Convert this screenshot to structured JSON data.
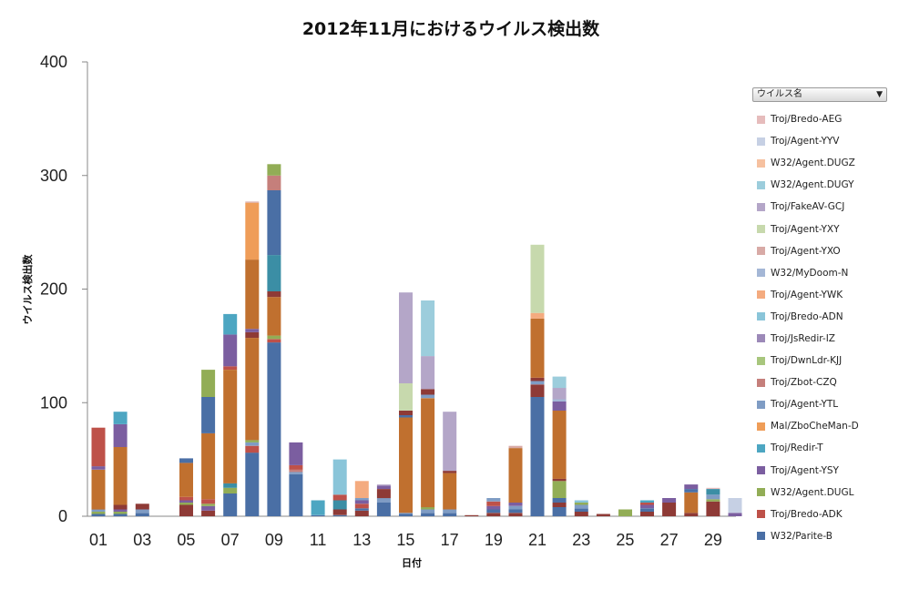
{
  "colors": {
    "W32/Parite-B": "#4a6fa5",
    "Troj/Bredo-ADK": "#be5149",
    "W32/Agent.DUGL": "#92ad56",
    "Troj/Agent-YSY": "#7b5ea0",
    "Troj/Redir-T": "#4da6c2",
    "Mal/ZboCheMan-D": "#ef9d58",
    "Troj/Agent-YTL": "#7f9cc4",
    "Troj/Zbot-CZQ": "#c57f7b",
    "Troj/DwnLdr-KJJ": "#a8c67d",
    "Troj/JsRedir-IZ": "#9c89b8",
    "Troj/Bredo-ADN": "#8ac5d9",
    "Troj/Agent-YWK": "#f4ab7f",
    "W32/MyDoom-N": "#a4b7d6",
    "Troj/Agent-YXO": "#d8aaa6",
    "Troj/Agent-YXY": "#c7d9ad",
    "Troj/FakeAV-GCJ": "#b4a6c8",
    "W32/Agent.DUGY": "#9ccddc",
    "W32/Agent.DUGZ": "#f6c1a0",
    "Troj/Agent-YYV": "#c6d0e4",
    "Troj/Bredo-AEG": "#e6bcbc",
    "dark-blue": "#3a5a8c",
    "dark-red": "#8e3a36",
    "brown": "#c0702f",
    "dark-teal": "#3b8ea5"
  },
  "legend": {
    "filter_label": "ウイルス名",
    "items": [
      "Troj/Bredo-AEG",
      "Troj/Agent-YYV",
      "W32/Agent.DUGZ",
      "W32/Agent.DUGY",
      "Troj/FakeAV-GCJ",
      "Troj/Agent-YXY",
      "Troj/Agent-YXO",
      "W32/MyDoom-N",
      "Troj/Agent-YWK",
      "Troj/Bredo-ADN",
      "Troj/JsRedir-IZ",
      "Troj/DwnLdr-KJJ",
      "Troj/Zbot-CZQ",
      "Troj/Agent-YTL",
      "Mal/ZboCheMan-D",
      "Troj/Redir-T",
      "Troj/Agent-YSY",
      "W32/Agent.DUGL",
      "Troj/Bredo-ADK",
      "W32/Parite-B"
    ]
  },
  "chart_data": {
    "type": "bar",
    "stacked": true,
    "title": "2012年11月におけるウイルス検出数",
    "xlabel": "日付",
    "ylabel": "ウイルス検出数",
    "ylim": [
      0,
      400
    ],
    "yticks": [
      0,
      100,
      200,
      300,
      400
    ],
    "xtick_labels": [
      "01",
      "03",
      "05",
      "07",
      "09",
      "11",
      "13",
      "15",
      "17",
      "19",
      "21",
      "23",
      "25",
      "27",
      "29"
    ],
    "categories": [
      "01",
      "02",
      "03",
      "04",
      "05",
      "06",
      "07",
      "08",
      "09",
      "10",
      "11",
      "12",
      "13",
      "14",
      "15",
      "16",
      "17",
      "18",
      "19",
      "20",
      "21",
      "22",
      "23",
      "24",
      "25",
      "26",
      "27",
      "28",
      "29",
      "30"
    ],
    "stacks": [
      [
        [
          "W32/Parite-B",
          2
        ],
        [
          "W32/Agent.DUGL",
          2
        ],
        [
          "Troj/Agent-YTL",
          2
        ],
        [
          "brown",
          35
        ],
        [
          "Troj/Agent-YSY",
          3
        ],
        [
          "Troj/Bredo-ADK",
          34
        ]
      ],
      [
        [
          "W32/Parite-B",
          2
        ],
        [
          "W32/Agent.DUGL",
          2
        ],
        [
          "Troj/Agent-YSY",
          2
        ],
        [
          "dark-red",
          4
        ],
        [
          "brown",
          51
        ],
        [
          "Troj/Agent-YSY",
          20
        ],
        [
          "Troj/Redir-T",
          11
        ]
      ],
      [
        [
          "W32/Parite-B",
          3
        ],
        [
          "Troj/Agent-YTL",
          3
        ],
        [
          "dark-red",
          5
        ]
      ],
      [],
      [
        [
          "dark-red",
          10
        ],
        [
          "W32/Agent.DUGL",
          2
        ],
        [
          "Troj/Agent-YSY",
          2
        ],
        [
          "Troj/Bredo-ADK",
          3
        ],
        [
          "brown",
          30
        ],
        [
          "W32/Parite-B",
          4
        ]
      ],
      [
        [
          "dark-red",
          5
        ],
        [
          "Troj/Agent-YSY",
          4
        ],
        [
          "W32/Agent.DUGL",
          2
        ],
        [
          "Troj/Bredo-ADK",
          4
        ],
        [
          "brown",
          58
        ],
        [
          "W32/Parite-B",
          32
        ],
        [
          "W32/Agent.DUGL",
          24
        ]
      ],
      [
        [
          "W32/Parite-B",
          20
        ],
        [
          "W32/Agent.DUGL",
          5
        ],
        [
          "dark-teal",
          4
        ],
        [
          "brown",
          100
        ],
        [
          "Troj/Bredo-ADK",
          3
        ],
        [
          "Troj/Agent-YSY",
          28
        ],
        [
          "Troj/Redir-T",
          18
        ]
      ],
      [
        [
          "W32/Parite-B",
          56
        ],
        [
          "Troj/Bredo-ADK",
          6
        ],
        [
          "Troj/Agent-YTL",
          3
        ],
        [
          "W32/Agent.DUGL",
          2
        ],
        [
          "brown",
          90
        ],
        [
          "dark-red",
          5
        ],
        [
          "Troj/Agent-YSY",
          3
        ],
        [
          "brown",
          61
        ],
        [
          "Mal/ZboCheMan-D",
          50
        ],
        [
          "Troj/Agent-YXO",
          1
        ]
      ],
      [
        [
          "W32/Parite-B",
          153
        ],
        [
          "Troj/Bredo-ADK",
          3
        ],
        [
          "W32/Agent.DUGL",
          3
        ],
        [
          "brown",
          34
        ],
        [
          "dark-red",
          5
        ],
        [
          "dark-teal",
          32
        ],
        [
          "W32/Parite-B",
          57
        ],
        [
          "Troj/Zbot-CZQ",
          13
        ],
        [
          "W32/Agent.DUGL",
          10
        ]
      ],
      [
        [
          "W32/Parite-B",
          37
        ],
        [
          "Troj/Agent-YTL",
          2
        ],
        [
          "Troj/Zbot-CZQ",
          2
        ],
        [
          "Troj/Bredo-ADK",
          4
        ],
        [
          "Troj/Agent-YSY",
          20
        ]
      ],
      [
        [
          "W32/Parite-B",
          1
        ],
        [
          "Troj/Redir-T",
          13
        ]
      ],
      [
        [
          "W32/Parite-B",
          1
        ],
        [
          "dark-red",
          5
        ],
        [
          "dark-teal",
          8
        ],
        [
          "Troj/Bredo-ADK",
          5
        ],
        [
          "Troj/Bredo-ADN",
          31
        ]
      ],
      [
        [
          "dark-red",
          5
        ],
        [
          "W32/Parite-B",
          2
        ],
        [
          "Troj/Bredo-ADK",
          4
        ],
        [
          "Troj/Agent-YSY",
          3
        ],
        [
          "Troj/Agent-YTL",
          2
        ],
        [
          "Troj/Agent-YWK",
          15
        ]
      ],
      [
        [
          "W32/Parite-B",
          12
        ],
        [
          "Troj/Agent-YTL",
          4
        ],
        [
          "dark-red",
          8
        ],
        [
          "Troj/Agent-YSY",
          3
        ],
        [
          "Troj/FakeAV-GCJ",
          1
        ]
      ],
      [
        [
          "W32/Parite-B",
          2
        ],
        [
          "Troj/Agent-YTL",
          1
        ],
        [
          "brown",
          84
        ],
        [
          "W32/Parite-B",
          2
        ],
        [
          "dark-red",
          4
        ],
        [
          "Troj/Agent-YXY",
          24
        ],
        [
          "Troj/FakeAV-GCJ",
          80
        ]
      ],
      [
        [
          "W32/Parite-B",
          3
        ],
        [
          "Troj/Agent-YTL",
          3
        ],
        [
          "W32/Agent.DUGL",
          2
        ],
        [
          "brown",
          96
        ],
        [
          "Troj/Agent-YTL",
          3
        ],
        [
          "dark-red",
          5
        ],
        [
          "Troj/FakeAV-GCJ",
          29
        ],
        [
          "W32/Agent.DUGY",
          49
        ]
      ],
      [
        [
          "W32/Parite-B",
          3
        ],
        [
          "Troj/Agent-YTL",
          3
        ],
        [
          "brown",
          32
        ],
        [
          "dark-red",
          2
        ],
        [
          "Troj/FakeAV-GCJ",
          52
        ]
      ],
      [
        [
          "dark-red",
          1
        ]
      ],
      [
        [
          "dark-red",
          3
        ],
        [
          "W32/Parite-B",
          3
        ],
        [
          "Troj/Agent-YSY",
          3
        ],
        [
          "Troj/Bredo-ADK",
          4
        ],
        [
          "Troj/Agent-YTL",
          3
        ]
      ],
      [
        [
          "dark-red",
          3
        ],
        [
          "W32/Parite-B",
          3
        ],
        [
          "Troj/Agent-YTL",
          3
        ],
        [
          "Troj/Agent-YSY",
          3
        ],
        [
          "brown",
          48
        ],
        [
          "Troj/Agent-YXO",
          2
        ]
      ],
      [
        [
          "W32/Parite-B",
          105
        ],
        [
          "dark-red",
          11
        ],
        [
          "Troj/Agent-YTL",
          3
        ],
        [
          "dark-red",
          3
        ],
        [
          "brown",
          52
        ],
        [
          "Troj/Agent-YWK",
          5
        ],
        [
          "Troj/Agent-YXY",
          60
        ]
      ],
      [
        [
          "W32/Parite-B",
          8
        ],
        [
          "dark-red",
          4
        ],
        [
          "W32/Parite-B",
          4
        ],
        [
          "W32/Agent.DUGL",
          15
        ],
        [
          "dark-red",
          2
        ],
        [
          "brown",
          60
        ],
        [
          "Troj/Agent-YSY",
          8
        ],
        [
          "W32/MyDoom-N",
          2
        ],
        [
          "Troj/FakeAV-GCJ",
          10
        ],
        [
          "W32/Agent.DUGY",
          10
        ]
      ],
      [
        [
          "dark-red",
          4
        ],
        [
          "W32/Parite-B",
          3
        ],
        [
          "Troj/Agent-YTL",
          3
        ],
        [
          "W32/Agent.DUGL",
          2
        ],
        [
          "Troj/Bredo-ADN",
          2
        ]
      ],
      [
        [
          "dark-red",
          2
        ]
      ],
      [
        [
          "W32/Agent.DUGL",
          6
        ]
      ],
      [
        [
          "dark-red",
          4
        ],
        [
          "W32/Parite-B",
          3
        ],
        [
          "Troj/Agent-YSY",
          3
        ],
        [
          "Troj/Bredo-ADK",
          2
        ],
        [
          "Troj/Redir-T",
          2
        ]
      ],
      [
        [
          "dark-red",
          12
        ],
        [
          "Troj/Agent-YSY",
          4
        ]
      ],
      [
        [
          "dark-red",
          3
        ],
        [
          "brown",
          18
        ],
        [
          "W32/Parite-B",
          3
        ],
        [
          "Troj/Agent-YSY",
          4
        ]
      ],
      [
        [
          "dark-red",
          13
        ],
        [
          "W32/Agent.DUGL",
          2
        ],
        [
          "Troj/Agent-YTL",
          4
        ],
        [
          "dark-teal",
          5
        ],
        [
          "Troj/Bredo-AEG",
          1
        ]
      ],
      [
        [
          "Troj/Agent-YSY",
          3
        ],
        [
          "Troj/Agent-YYV",
          13
        ]
      ]
    ]
  }
}
